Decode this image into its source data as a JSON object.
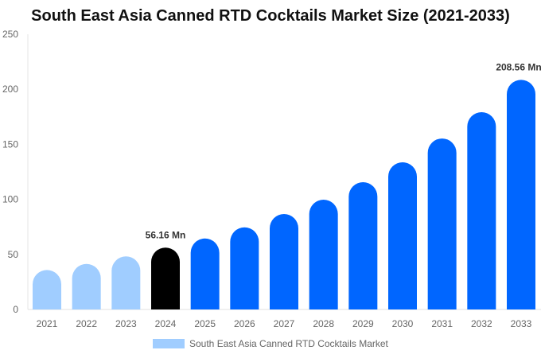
{
  "chart_data": {
    "type": "bar",
    "title": "South East Asia Canned RTD Cocktails Market Size (2021-2033)",
    "categories": [
      "2021",
      "2022",
      "2023",
      "2024",
      "2025",
      "2026",
      "2027",
      "2028",
      "2029",
      "2030",
      "2031",
      "2032",
      "2033"
    ],
    "series": [
      {
        "name": "South East Asia Canned RTD Cocktails Market",
        "values": [
          35.9,
          41.4,
          48.2,
          56.16,
          64.5,
          74.6,
          86.7,
          99.7,
          115.6,
          133.7,
          155.3,
          179.2,
          208.56
        ]
      }
    ],
    "data_labels": [
      {
        "category": "2024",
        "text": "56.16 Mn"
      },
      {
        "category": "2033",
        "text": "208.56 Mn"
      }
    ],
    "ylim": [
      0,
      250
    ],
    "yticks": [
      0,
      50,
      100,
      150,
      200,
      250
    ],
    "grid": false,
    "legend": "bottom",
    "colors": {
      "historical": "#a0cdff",
      "base_year": "#000000",
      "forecast": "#0066ff"
    }
  }
}
